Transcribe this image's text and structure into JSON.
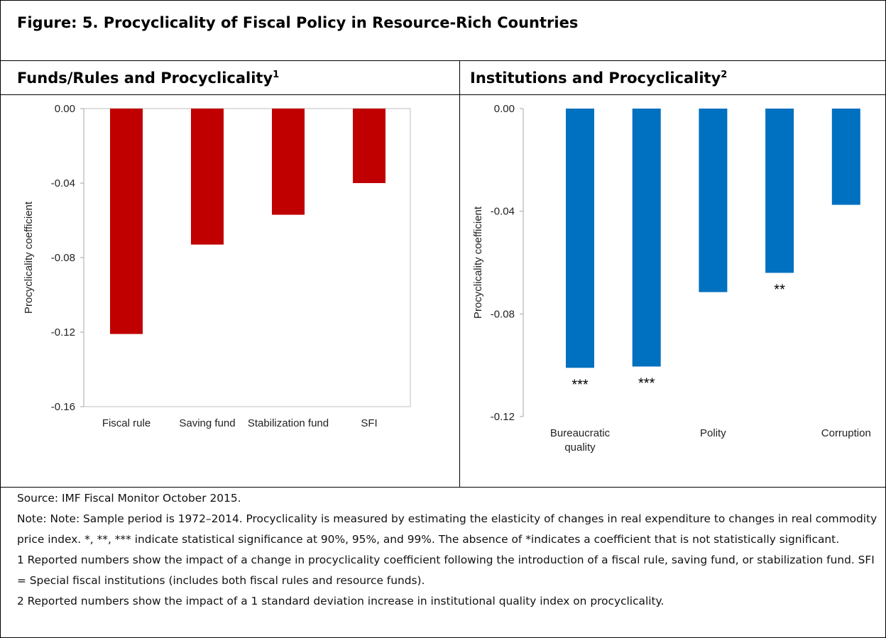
{
  "figure_title": "Figure: 5. Procyclicality of Fiscal Policy in Resource-Rich Countries",
  "chart_data": [
    {
      "type": "bar",
      "title": "Funds/Rules and Procyclicality",
      "title_note": "1",
      "y_label": "Procyclicality coefficient",
      "categories": [
        "Fiscal rule",
        "Saving fund",
        "Stabilization fund",
        "SFI"
      ],
      "values": [
        -0.121,
        -0.073,
        -0.057,
        -0.04
      ],
      "color": "#c00000",
      "ylim": [
        -0.16,
        0
      ],
      "yticks": [
        {
          "value": 0,
          "label": "0.00"
        },
        -0.04,
        -0.08,
        -0.12,
        -0.16
      ]
    },
    {
      "type": "bar",
      "title": "Institutions and Procyclicality",
      "title_note": "2",
      "y_label": "Procyclicality coefficient",
      "categories": [
        "Bureaucratic quality",
        null,
        "Polity",
        null,
        "Corruption"
      ],
      "values": [
        -0.101,
        -0.1005,
        -0.0715,
        -0.064,
        -0.0375
      ],
      "color": "#0070c0",
      "annotations": [
        "***",
        "***",
        null,
        "**",
        null
      ],
      "ylim": [
        -0.12,
        0
      ],
      "yticks": [
        {
          "value": 0,
          "label": "0.00"
        },
        -0.04,
        -0.08,
        -0.12
      ]
    }
  ],
  "source": "Source: IMF Fiscal Monitor October 2015.",
  "notes": [
    "Note: Note: Sample period is 1972–2014. Procyclicality is measured by estimating the elasticity of changes in real expenditure to changes in real commodity price index. *, **, *** indicate statistical significance at 90%, 95%, and 99%. The absence of *indicates a coefficient that is not statistically significant.",
    "1 Reported numbers show the impact of a change in procyclicality coefficient following the introduction of a fiscal rule, saving fund, or stabilization fund. SFI = Special fiscal institutions (includes both fiscal rules and resource funds).",
    "2 Reported numbers show the impact of a 1 standard deviation increase in institutional quality index on procyclicality."
  ]
}
